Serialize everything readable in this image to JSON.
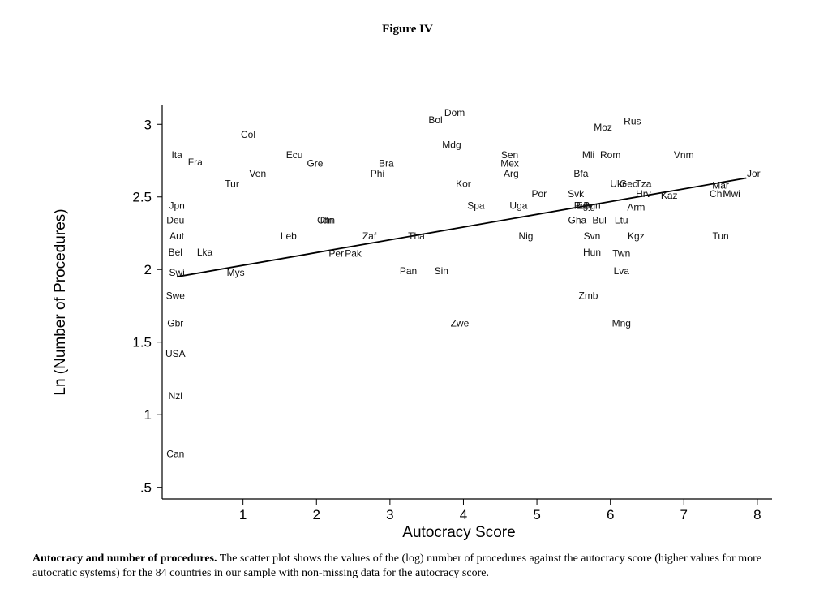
{
  "figure": {
    "title": "Figure IV",
    "caption_bold": "Autocracy and number of procedures.",
    "caption_text": " The scatter plot shows the values of the (log) number of procedures against the autocracy score (higher values for more autocratic systems) for the 84 countries in our sample with non-missing data for the autocracy score."
  },
  "chart_data": {
    "type": "scatter",
    "title": "",
    "xlabel": "Autocracy Score",
    "ylabel": "Ln (Number of Procedures)",
    "xlim": [
      -0.1,
      8.2
    ],
    "ylim": [
      0.42,
      3.13
    ],
    "x_ticks": [
      1,
      2,
      3,
      4,
      5,
      6,
      7,
      8
    ],
    "x_tick_labels": [
      "1",
      "2",
      "3",
      "4",
      "5",
      "6",
      "7",
      "8"
    ],
    "y_ticks": [
      0.5,
      1,
      1.5,
      2,
      2.5,
      3
    ],
    "y_tick_labels": [
      ".5",
      "1",
      "1.5",
      "2",
      "2.5",
      "3"
    ],
    "grid": false,
    "marker": "country-code text",
    "points": [
      {
        "label": "Dom",
        "x": 3.88,
        "y": 3.08
      },
      {
        "label": "Bol",
        "x": 3.62,
        "y": 3.03
      },
      {
        "label": "Rus",
        "x": 6.3,
        "y": 3.02
      },
      {
        "label": "Moz",
        "x": 5.9,
        "y": 2.98
      },
      {
        "label": "Col",
        "x": 1.07,
        "y": 2.93
      },
      {
        "label": "Mdg",
        "x": 3.84,
        "y": 2.86
      },
      {
        "label": "Ita",
        "x": 0.1,
        "y": 2.79
      },
      {
        "label": "Ecu",
        "x": 1.7,
        "y": 2.79
      },
      {
        "label": "Sen",
        "x": 4.63,
        "y": 2.79
      },
      {
        "label": "Mli",
        "x": 5.7,
        "y": 2.79
      },
      {
        "label": "Rom",
        "x": 6.0,
        "y": 2.79
      },
      {
        "label": "Vnm",
        "x": 7.0,
        "y": 2.79
      },
      {
        "label": "Fra",
        "x": 0.35,
        "y": 2.74
      },
      {
        "label": "Gre",
        "x": 1.98,
        "y": 2.73
      },
      {
        "label": "Bra",
        "x": 2.95,
        "y": 2.73
      },
      {
        "label": "Mex",
        "x": 4.63,
        "y": 2.73
      },
      {
        "label": "Ven",
        "x": 1.2,
        "y": 2.66
      },
      {
        "label": "Phi",
        "x": 2.83,
        "y": 2.66
      },
      {
        "label": "Arg",
        "x": 4.65,
        "y": 2.66
      },
      {
        "label": "Bfa",
        "x": 5.6,
        "y": 2.66
      },
      {
        "label": "Jor",
        "x": 7.95,
        "y": 2.66
      },
      {
        "label": "Tur",
        "x": 0.85,
        "y": 2.59
      },
      {
        "label": "Kor",
        "x": 4.0,
        "y": 2.59
      },
      {
        "label": "Ukr",
        "x": 6.1,
        "y": 2.59
      },
      {
        "label": "Geo",
        "x": 6.25,
        "y": 2.59
      },
      {
        "label": "Tza",
        "x": 6.45,
        "y": 2.59
      },
      {
        "label": "Mar",
        "x": 7.5,
        "y": 2.58
      },
      {
        "label": "Por",
        "x": 5.03,
        "y": 2.52
      },
      {
        "label": "Svk",
        "x": 5.53,
        "y": 2.52
      },
      {
        "label": "Hrv",
        "x": 6.45,
        "y": 2.52
      },
      {
        "label": "Kaz",
        "x": 6.8,
        "y": 2.51
      },
      {
        "label": "Chl",
        "x": 7.45,
        "y": 2.52
      },
      {
        "label": "Mwi",
        "x": 7.65,
        "y": 2.52
      },
      {
        "label": "Jpn",
        "x": 0.1,
        "y": 2.44
      },
      {
        "label": "Spa",
        "x": 4.17,
        "y": 2.44
      },
      {
        "label": "Uga",
        "x": 4.75,
        "y": 2.44
      },
      {
        "label": "Egy",
        "x": 5.65,
        "y": 2.44
      },
      {
        "label": "Pol",
        "x": 5.6,
        "y": 2.44
      },
      {
        "label": "Bgn",
        "x": 5.75,
        "y": 2.44
      },
      {
        "label": "Arm",
        "x": 6.35,
        "y": 2.43
      },
      {
        "label": "Deu",
        "x": 0.08,
        "y": 2.34
      },
      {
        "label": "Chn",
        "x": 2.13,
        "y": 2.34
      },
      {
        "label": "Idn",
        "x": 2.14,
        "y": 2.34
      },
      {
        "label": "Gha",
        "x": 5.55,
        "y": 2.34
      },
      {
        "label": "Bul",
        "x": 5.85,
        "y": 2.34
      },
      {
        "label": "Ltu",
        "x": 6.15,
        "y": 2.34
      },
      {
        "label": "Aut",
        "x": 0.1,
        "y": 2.23
      },
      {
        "label": "Leb",
        "x": 1.62,
        "y": 2.23
      },
      {
        "label": "Zaf",
        "x": 2.72,
        "y": 2.23
      },
      {
        "label": "Tha",
        "x": 3.36,
        "y": 2.23
      },
      {
        "label": "Nig",
        "x": 4.85,
        "y": 2.23
      },
      {
        "label": "Svn",
        "x": 5.75,
        "y": 2.23
      },
      {
        "label": "Kgz",
        "x": 6.35,
        "y": 2.23
      },
      {
        "label": "Tun",
        "x": 7.5,
        "y": 2.23
      },
      {
        "label": "Bel",
        "x": 0.08,
        "y": 2.12
      },
      {
        "label": "Lka",
        "x": 0.48,
        "y": 2.12
      },
      {
        "label": "Per",
        "x": 2.27,
        "y": 2.11
      },
      {
        "label": "Pak",
        "x": 2.5,
        "y": 2.11
      },
      {
        "label": "Hun",
        "x": 5.75,
        "y": 2.12
      },
      {
        "label": "Twn",
        "x": 6.15,
        "y": 2.11
      },
      {
        "label": "Swi",
        "x": 0.1,
        "y": 1.98
      },
      {
        "label": "Mys",
        "x": 0.9,
        "y": 1.98
      },
      {
        "label": "Pan",
        "x": 3.25,
        "y": 1.99
      },
      {
        "label": "Sin",
        "x": 3.7,
        "y": 1.99
      },
      {
        "label": "Lva",
        "x": 6.15,
        "y": 1.99
      },
      {
        "label": "Swe",
        "x": 0.08,
        "y": 1.82
      },
      {
        "label": "Zmb",
        "x": 5.7,
        "y": 1.82
      },
      {
        "label": "Gbr",
        "x": 0.08,
        "y": 1.63
      },
      {
        "label": "Zwe",
        "x": 3.95,
        "y": 1.63
      },
      {
        "label": "Mng",
        "x": 6.15,
        "y": 1.63
      },
      {
        "label": "USA",
        "x": 0.08,
        "y": 1.42
      },
      {
        "label": "Nzl",
        "x": 0.08,
        "y": 1.13
      },
      {
        "label": "Can",
        "x": 0.08,
        "y": 0.73
      }
    ],
    "fit_line": {
      "x": [
        0.1,
        7.85
      ],
      "y": [
        1.95,
        2.63
      ]
    }
  }
}
